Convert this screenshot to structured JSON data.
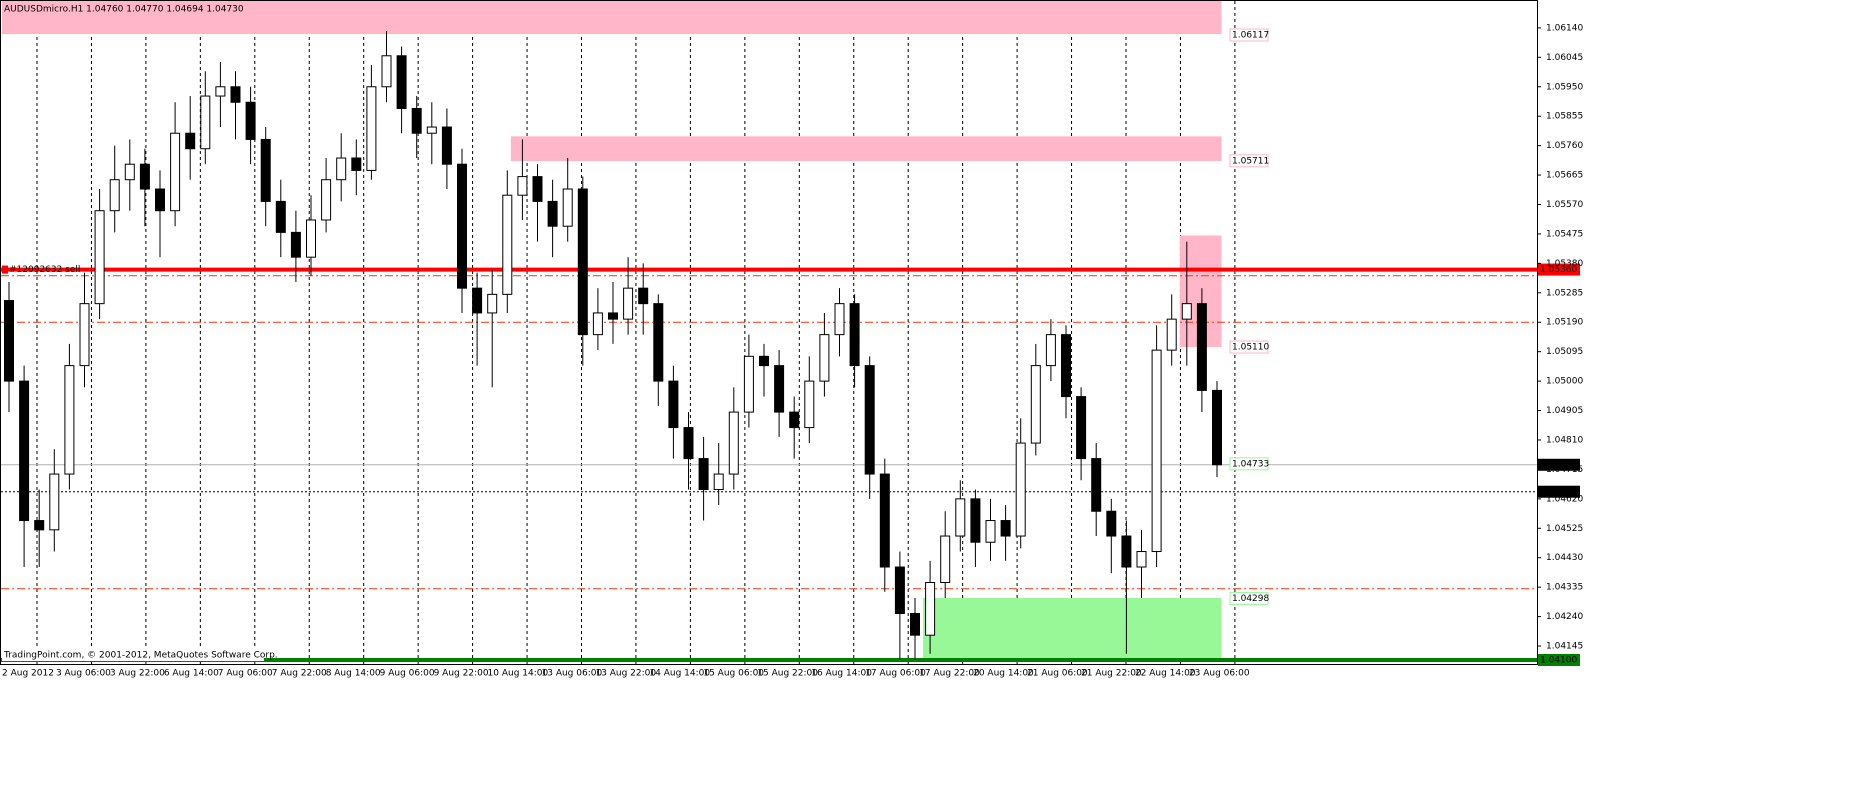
{
  "chart_data": {
    "type": "candlestick",
    "title": "AUDUSDmicro.H1  1.04760 1.04770 1.04694 1.04730",
    "footer": "TradingPoint.com, © 2001-2012, MetaQuotes Software Corp.",
    "x_labels": [
      "2 Aug 2012",
      "3 Aug 06:00",
      "3 Aug 22:00",
      "6 Aug 14:00",
      "7 Aug 06:00",
      "7 Aug 22:00",
      "8 Aug 14:00",
      "9 Aug 06:00",
      "9 Aug 22:00",
      "10 Aug 14:00",
      "13 Aug 06:00",
      "13 Aug 22:00",
      "14 Aug 14:00",
      "15 Aug 06:00",
      "15 Aug 22:00",
      "16 Aug 14:00",
      "17 Aug 06:00",
      "17 Aug 22:00",
      "20 Aug 14:00",
      "21 Aug 06:00",
      "21 Aug 22:00",
      "22 Aug 14:00",
      "23 Aug 06:00"
    ],
    "open": [
      1.0526,
      1.05,
      1.0455,
      1.0452,
      1.047,
      1.0505,
      1.0525,
      1.0555,
      1.0565,
      1.057,
      1.0562,
      1.0555,
      1.058,
      1.0575,
      1.0592,
      1.0595,
      1.059,
      1.0578,
      1.0558,
      1.0548,
      1.054,
      1.0552,
      1.0565,
      1.0572,
      1.0568,
      1.0595,
      1.0605,
      1.0588,
      1.058,
      1.0582,
      1.057,
      1.053,
      1.0522,
      1.0528,
      1.056,
      1.0566,
      1.0558,
      1.055,
      1.0562,
      1.0515,
      1.0522,
      1.052,
      1.053,
      1.0525,
      1.05,
      1.0485,
      1.0475,
      1.0465,
      1.047,
      1.049,
      1.0508,
      1.0505,
      1.049,
      1.0485,
      1.05,
      1.0515,
      1.0525,
      1.0505,
      1.047,
      1.044,
      1.0425,
      1.0418,
      1.0435,
      1.045,
      1.0462,
      1.0448,
      1.0455,
      1.045,
      1.048,
      1.0505,
      1.0515,
      1.0495,
      1.0475,
      1.0458,
      1.045,
      1.044,
      1.0445,
      1.051,
      1.052,
      1.0525,
      1.0497
    ],
    "high": [
      1.0532,
      1.0505,
      1.0465,
      1.0478,
      1.0512,
      1.0535,
      1.0562,
      1.0576,
      1.0578,
      1.0575,
      1.0568,
      1.059,
      1.0592,
      1.06,
      1.0603,
      1.06,
      1.0595,
      1.0582,
      1.0565,
      1.0555,
      1.056,
      1.0572,
      1.058,
      1.0578,
      1.0602,
      1.0613,
      1.0608,
      1.0592,
      1.059,
      1.0588,
      1.0575,
      1.0535,
      1.0536,
      1.0568,
      1.0578,
      1.057,
      1.0565,
      1.0572,
      1.0566,
      1.053,
      1.0532,
      1.054,
      1.0538,
      1.0528,
      1.0505,
      1.049,
      1.0482,
      1.048,
      1.0498,
      1.0515,
      1.0512,
      1.051,
      1.0495,
      1.0508,
      1.0522,
      1.053,
      1.0528,
      1.0508,
      1.0475,
      1.0445,
      1.043,
      1.0442,
      1.0458,
      1.0468,
      1.0465,
      1.0462,
      1.046,
      1.0488,
      1.0512,
      1.052,
      1.0518,
      1.0498,
      1.048,
      1.0462,
      1.0455,
      1.0452,
      1.0518,
      1.0528,
      1.0545,
      1.053,
      1.05
    ],
    "low": [
      1.049,
      1.044,
      1.044,
      1.0445,
      1.0465,
      1.0498,
      1.052,
      1.0548,
      1.0555,
      1.055,
      1.054,
      1.055,
      1.0565,
      1.057,
      1.0582,
      1.0578,
      1.057,
      1.055,
      1.054,
      1.0532,
      1.0534,
      1.0548,
      1.0558,
      1.056,
      1.0565,
      1.059,
      1.058,
      1.0572,
      1.057,
      1.0562,
      1.0522,
      1.0505,
      1.0498,
      1.0522,
      1.0552,
      1.0545,
      1.054,
      1.0545,
      1.0505,
      1.051,
      1.0512,
      1.0515,
      1.0515,
      1.0492,
      1.0475,
      1.0465,
      1.0455,
      1.046,
      1.0465,
      1.0485,
      1.0495,
      1.0482,
      1.0475,
      1.048,
      1.0495,
      1.0508,
      1.0498,
      1.0462,
      1.0432,
      1.041,
      1.041,
      1.0412,
      1.043,
      1.0445,
      1.044,
      1.0442,
      1.0442,
      1.0446,
      1.0476,
      1.05,
      1.0488,
      1.0468,
      1.045,
      1.0438,
      1.0412,
      1.043,
      1.044,
      1.0505,
      1.0505,
      1.049,
      1.0469
    ],
    "close": [
      1.05,
      1.0455,
      1.0452,
      1.047,
      1.0505,
      1.0525,
      1.0555,
      1.0565,
      1.057,
      1.0562,
      1.0555,
      1.058,
      1.0575,
      1.0592,
      1.0595,
      1.059,
      1.0578,
      1.0558,
      1.0548,
      1.054,
      1.0552,
      1.0565,
      1.0572,
      1.0568,
      1.0595,
      1.0605,
      1.0588,
      1.058,
      1.0582,
      1.057,
      1.053,
      1.0522,
      1.0528,
      1.056,
      1.0566,
      1.0558,
      1.055,
      1.0562,
      1.0515,
      1.0522,
      1.052,
      1.053,
      1.0525,
      1.05,
      1.0485,
      1.0475,
      1.0465,
      1.047,
      1.049,
      1.0508,
      1.0505,
      1.049,
      1.0485,
      1.05,
      1.0515,
      1.0525,
      1.0505,
      1.047,
      1.044,
      1.0425,
      1.0418,
      1.0435,
      1.045,
      1.0462,
      1.0448,
      1.0455,
      1.045,
      1.048,
      1.0505,
      1.0515,
      1.0495,
      1.0475,
      1.0458,
      1.045,
      1.044,
      1.0445,
      1.051,
      1.052,
      1.0525,
      1.0497,
      1.0473
    ],
    "ylim": [
      1.04087,
      1.0623
    ],
    "yticks": [
      {
        "value": 1.0614,
        "label": "1.06140"
      },
      {
        "value": 1.06045,
        "label": "1.06045"
      },
      {
        "value": 1.0595,
        "label": "1.05950"
      },
      {
        "value": 1.05855,
        "label": "1.05855"
      },
      {
        "value": 1.0576,
        "label": "1.05760"
      },
      {
        "value": 1.05665,
        "label": "1.05665"
      },
      {
        "value": 1.0557,
        "label": "1.05570"
      },
      {
        "value": 1.05475,
        "label": "1.05475"
      },
      {
        "value": 1.0538,
        "label": "1.05380"
      },
      {
        "value": 1.05285,
        "label": "1.05285"
      },
      {
        "value": 1.0519,
        "label": "1.05190"
      },
      {
        "value": 1.05095,
        "label": "1.05095"
      },
      {
        "value": 1.05,
        "label": "1.05000"
      },
      {
        "value": 1.04905,
        "label": "1.04905"
      },
      {
        "value": 1.0481,
        "label": "1.04810"
      },
      {
        "value": 1.04715,
        "label": "1.04715"
      },
      {
        "value": 1.0462,
        "label": "1.04620"
      },
      {
        "value": 1.04525,
        "label": "1.04525"
      },
      {
        "value": 1.0443,
        "label": "1.04430"
      },
      {
        "value": 1.04335,
        "label": "1.04335"
      },
      {
        "value": 1.0424,
        "label": "1.04240"
      },
      {
        "value": 1.04145,
        "label": "1.04145"
      }
    ],
    "zones": [
      {
        "x": [
          0,
          80.3
        ],
        "y": [
          1.0612,
          1.0623
        ],
        "color": "#ffb6c8"
      },
      {
        "x": [
          33.7,
          80.3
        ],
        "y": [
          1.0571,
          1.0579
        ],
        "color": "#ffb6c8"
      },
      {
        "x": [
          78,
          80.3
        ],
        "y": [
          1.0511,
          1.0547
        ],
        "color": "#ffb6c8"
      },
      {
        "x": [
          61,
          80.3
        ],
        "y": [
          1.041,
          1.043
        ],
        "color": "#98f898"
      }
    ],
    "tags": [
      {
        "value": 1.06117,
        "label": "1.06117",
        "color": "#ffb6c8"
      },
      {
        "value": 1.05711,
        "label": "1.05711",
        "color": "#ffb6c8"
      },
      {
        "value": 1.0511,
        "label": "1.05110",
        "color": "#ffb6c8"
      },
      {
        "value": 1.04733,
        "label": "1.04733",
        "color": "#98f898"
      },
      {
        "value": 1.04298,
        "label": "1.04298",
        "color": "#98f898"
      }
    ],
    "levels": [
      {
        "value": 1.0536,
        "color": "#ff0000",
        "style": "solid",
        "width": 4,
        "label": "#12092632 sell",
        "tag": "1.05360",
        "tag_color": "#ff0000"
      },
      {
        "value": 1.0534,
        "color": "#ff3300",
        "style": "dashdot",
        "width": 1
      },
      {
        "value": 1.0519,
        "color": "#ff3300",
        "style": "dashdot",
        "width": 1
      },
      {
        "value": 1.0433,
        "color": "#ff3300",
        "style": "dashdot",
        "width": 1
      },
      {
        "value": 1.0473,
        "color": "#b0b0b0",
        "style": "solid",
        "width": 1,
        "tag": "1.04730",
        "tag_color": "#000000"
      },
      {
        "value": 1.04643,
        "color": "#000000",
        "style": "dotted",
        "width": 1,
        "tag": "1.04643",
        "tag_color": "#000000"
      },
      {
        "value": 1.041,
        "color": "#008000",
        "style": "solid",
        "width": 4,
        "tag": "1.04100",
        "tag_color": "#008000"
      }
    ],
    "bull_color": "#ffffff",
    "bear_color": "#000000"
  }
}
